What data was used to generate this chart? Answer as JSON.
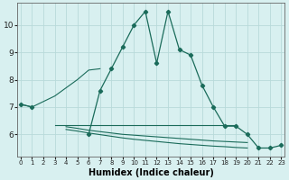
{
  "xlabel": "Humidex (Indice chaleur)",
  "x": [
    0,
    1,
    2,
    3,
    4,
    5,
    6,
    7,
    8,
    9,
    10,
    11,
    12,
    13,
    14,
    15,
    16,
    17,
    18,
    19,
    20,
    21,
    22,
    23
  ],
  "line_main": [
    7.1,
    7.0,
    null,
    null,
    null,
    null,
    6.0,
    7.6,
    8.4,
    9.2,
    10.0,
    10.5,
    8.6,
    10.5,
    9.1,
    8.9,
    7.8,
    7.0,
    6.3,
    6.3,
    6.0,
    5.5,
    5.5,
    5.6
  ],
  "line_smooth": [
    null,
    null,
    7.2,
    7.4,
    7.7,
    8.0,
    8.3,
    null,
    null,
    null,
    null,
    null,
    null,
    null,
    null,
    null,
    null,
    null,
    null,
    null,
    null,
    null,
    null,
    null
  ],
  "line_flat1": [
    null,
    null,
    null,
    6.35,
    6.35,
    null,
    null,
    null,
    null,
    null,
    null,
    null,
    null,
    null,
    null,
    null,
    null,
    null,
    null,
    null,
    null,
    null,
    null,
    null
  ],
  "line_flat_long": [
    null,
    null,
    null,
    6.35,
    6.28,
    6.25,
    6.22,
    6.18,
    6.15,
    6.12,
    6.1,
    6.08,
    6.06,
    6.04,
    6.02,
    6.0,
    5.98,
    5.96,
    5.94,
    5.92,
    null,
    null,
    null,
    null
  ],
  "line_declining": [
    null,
    null,
    null,
    null,
    6.35,
    6.32,
    null,
    null,
    null,
    null,
    null,
    null,
    null,
    null,
    null,
    null,
    null,
    null,
    null,
    null,
    null,
    null,
    null,
    null
  ],
  "line_color": "#1a6b5a",
  "bg_color": "#d8f0f0",
  "grid_color": "#b8dada",
  "ylim": [
    5.2,
    10.8
  ],
  "yticks": [
    6,
    7,
    8,
    9,
    10
  ],
  "xlim": [
    -0.3,
    23.3
  ]
}
